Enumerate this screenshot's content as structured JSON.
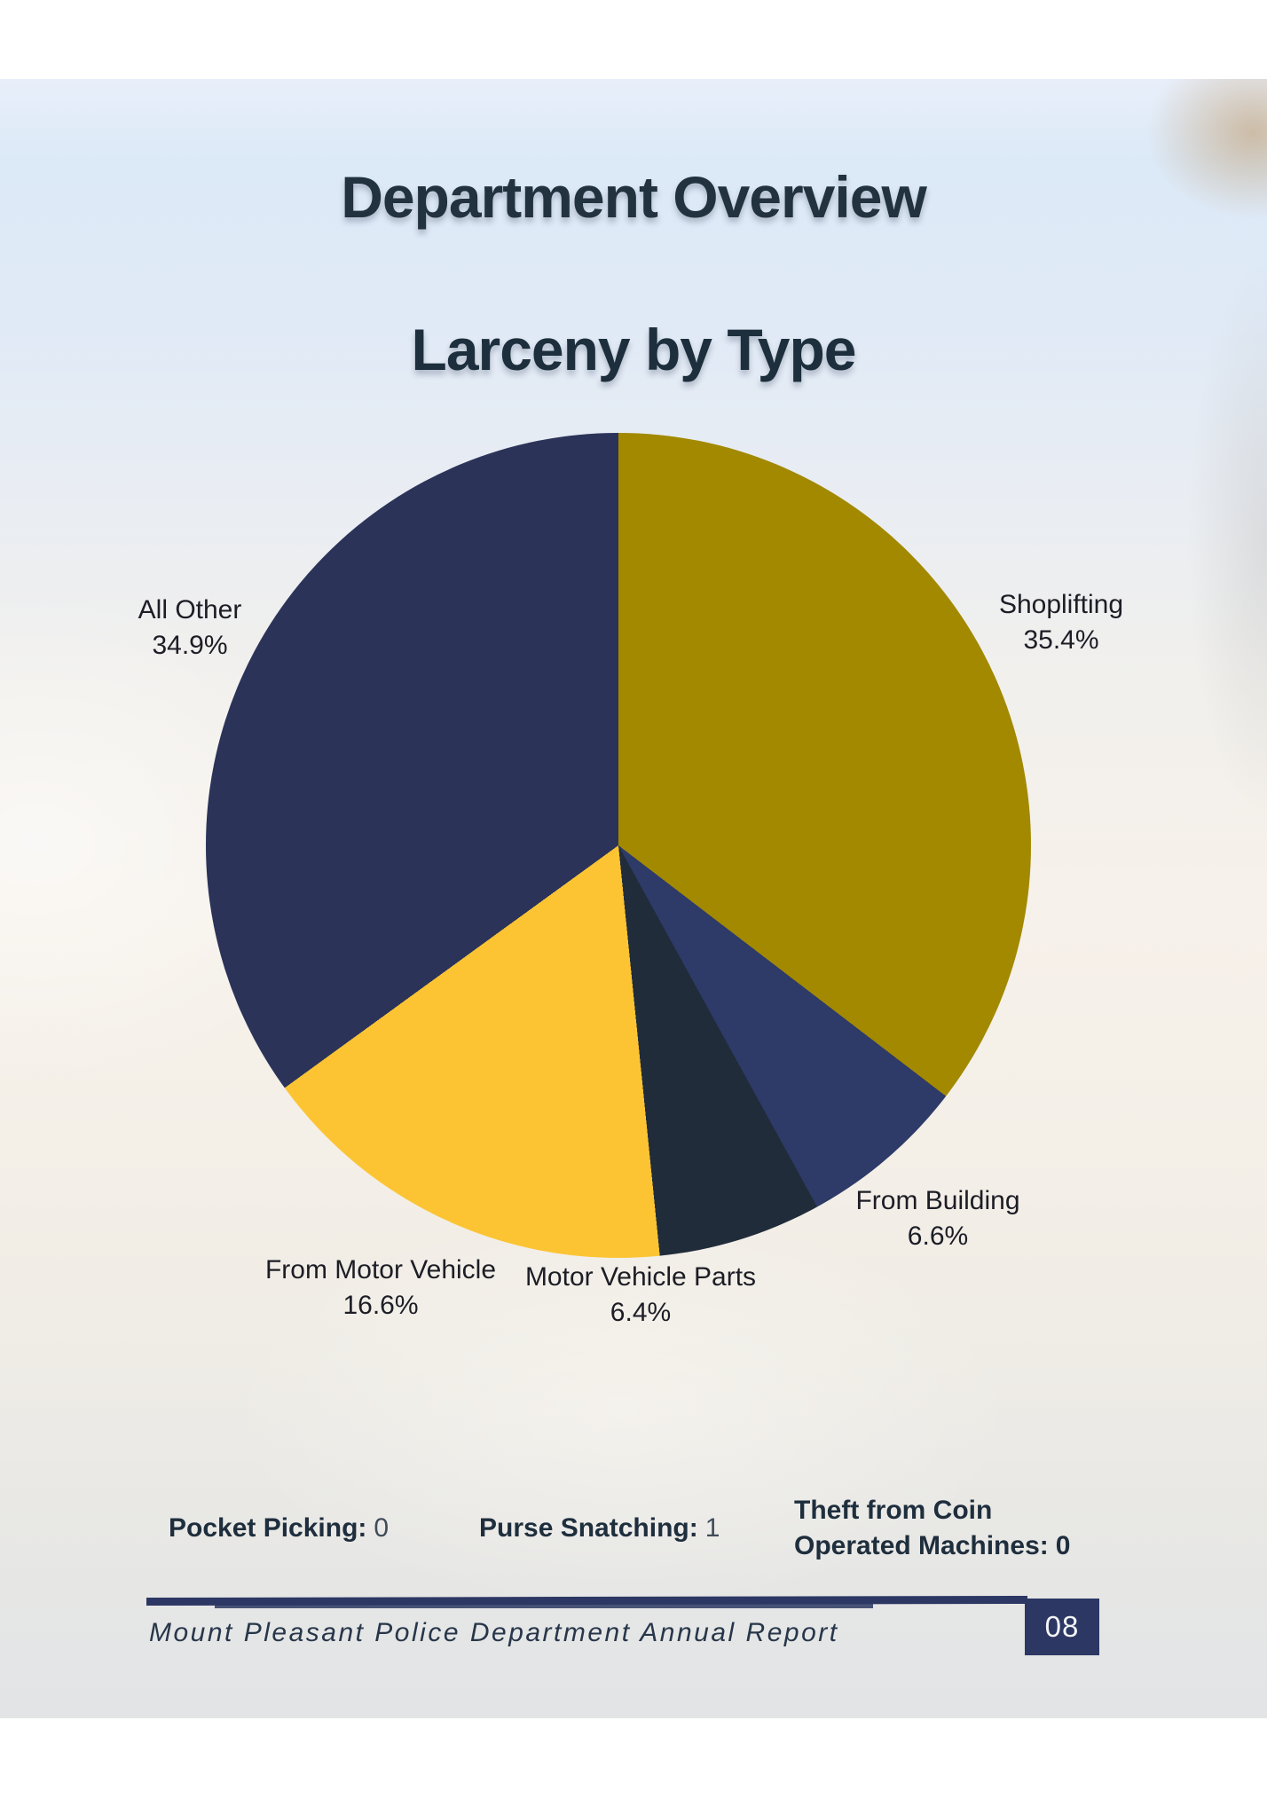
{
  "page": {
    "header_title": "Department Overview"
  },
  "chart_data": {
    "type": "pie",
    "title": "Larceny by Type",
    "unit": "%",
    "start_angle_deg": 0,
    "direction": "clockwise",
    "legend_position": "labels-around-pie",
    "slices": [
      {
        "label": "Shoplifting",
        "value": 35.4,
        "display": "35.4%",
        "color": "#a28900"
      },
      {
        "label": "From Building",
        "value": 6.6,
        "display": "6.6%",
        "color": "#2e3a68"
      },
      {
        "label": "Motor Vehicle Parts",
        "value": 6.4,
        "display": "6.4%",
        "color": "#202c3a"
      },
      {
        "label": "From Motor Vehicle",
        "value": 16.6,
        "display": "16.6%",
        "color": "#fcc433"
      },
      {
        "label": "All Other",
        "value": 34.9,
        "display": "34.9%",
        "color": "#2b3359"
      }
    ]
  },
  "stats": [
    {
      "label": "Pocket Picking:",
      "value": "0"
    },
    {
      "label": "Purse Snatching:",
      "value": "1"
    },
    {
      "label": "Theft from Coin Operated Machines:",
      "value": "0"
    }
  ],
  "footer": {
    "text": "Mount Pleasant Police Department Annual Report",
    "page_number": "08"
  },
  "theme": {
    "accent_navy": "#2c3763",
    "heading_color": "#22323e",
    "label_color": "#1d1d26"
  }
}
